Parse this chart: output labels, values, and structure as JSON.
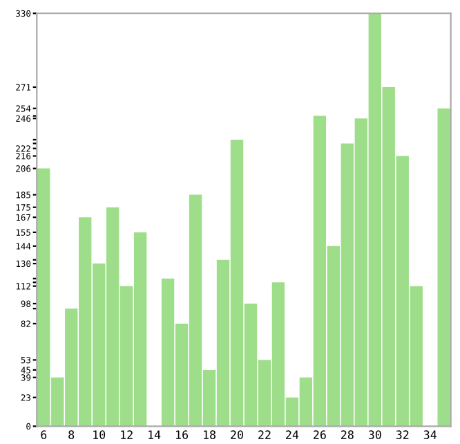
{
  "chart_data": {
    "type": "bar",
    "categories": [
      "6",
      null,
      "8",
      null,
      "10",
      null,
      "12",
      null,
      "14",
      null,
      "16",
      null,
      "18",
      null,
      "20",
      null,
      "22",
      null,
      "24",
      null,
      "26",
      null,
      "28",
      null,
      "30",
      null,
      "32",
      null,
      "34",
      null
    ],
    "values": [
      206,
      39,
      94,
      167,
      130,
      175,
      112,
      155,
      0,
      118,
      82,
      185,
      45,
      133,
      229,
      98,
      53,
      115,
      23,
      39,
      248,
      144,
      226,
      246,
      330,
      271,
      216,
      112,
      0,
      254
    ],
    "color": "#9ede8a",
    "ylim": [
      0,
      330
    ],
    "yticks": [
      0,
      23,
      39,
      45,
      53,
      82,
      {
        "value": 94,
        "label": null
      },
      98,
      112,
      {
        "value": 115,
        "label": null
      },
      {
        "value": 118,
        "label": null
      },
      130,
      {
        "value": 133,
        "label": null
      },
      144,
      155,
      167,
      175,
      185,
      206,
      216,
      222,
      {
        "value": 226,
        "label": null
      },
      {
        "value": 229,
        "label": null
      },
      246,
      {
        "value": 248,
        "label": null
      },
      254,
      271,
      330
    ],
    "grid": false
  }
}
